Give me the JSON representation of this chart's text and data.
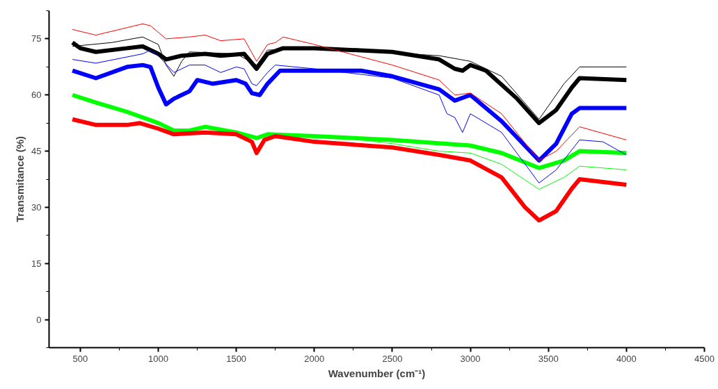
{
  "chart_data": {
    "type": "line",
    "xlabel": "Wavenumber (cm⁻¹)",
    "ylabel": "Transmitance (%)",
    "xlim": [
      300,
      4500
    ],
    "ylim": [
      -7.5,
      82.5
    ],
    "xticks": [
      500,
      {
        "value": 750,
        "label": null
      },
      1000,
      {
        "value": 1250,
        "label": null
      },
      1500,
      {
        "value": 1750,
        "label": null
      },
      2000,
      {
        "value": 2250,
        "label": null
      },
      2500,
      {
        "value": 2750,
        "label": null
      },
      3000,
      {
        "value": 3250,
        "label": null
      },
      3500,
      {
        "value": 3750,
        "label": null
      },
      4000,
      {
        "value": 4250,
        "label": null
      },
      4500
    ],
    "yticks": [
      {
        "value": -7.5,
        "label": null
      },
      0,
      {
        "value": 7.5,
        "label": null
      },
      15,
      {
        "value": 22.5,
        "label": null
      },
      30,
      {
        "value": 37.5,
        "label": null
      },
      45,
      {
        "value": 52.5,
        "label": null
      },
      60,
      {
        "value": 67.5,
        "label": null
      },
      75,
      {
        "value": 82.5,
        "label": null
      }
    ],
    "grid": false,
    "marker": "none",
    "line_style": "solid",
    "series": [
      {
        "color": "#000000",
        "x": [
          450,
          500,
          600,
          800,
          900,
          1000,
          1050,
          1150,
          1300,
          1400,
          1550,
          1630,
          1700,
          1800,
          2000,
          2500,
          2800,
          2900,
          2950,
          3000,
          3100,
          3300,
          3440,
          3550,
          3650,
          3700,
          4000
        ],
        "values": [
          74,
          72.5,
          71.5,
          72.5,
          73,
          71,
          69.5,
          70.5,
          71,
          70.5,
          71,
          67,
          71,
          72.5,
          72.5,
          71.5,
          69.5,
          67,
          66.5,
          68,
          66.5,
          59,
          52.5,
          56,
          62,
          64.5,
          64
        ]
      },
      {
        "color": "#0000ff",
        "x": [
          450,
          600,
          800,
          900,
          950,
          1000,
          1050,
          1100,
          1200,
          1250,
          1350,
          1500,
          1560,
          1600,
          1650,
          1700,
          1780,
          2000,
          2300,
          2500,
          2800,
          2900,
          3000,
          3200,
          3440,
          3550,
          3650,
          3700,
          4000
        ],
        "values": [
          66.5,
          64.5,
          67.5,
          68,
          67.5,
          62,
          57.5,
          59,
          61,
          64,
          63,
          64,
          63,
          60.5,
          60,
          63,
          66.5,
          66.5,
          66.5,
          65,
          61.5,
          58.5,
          60,
          53,
          42.5,
          47,
          55,
          56.5,
          56.5
        ]
      },
      {
        "color": "#00ff00",
        "x": [
          450,
          600,
          800,
          1000,
          1100,
          1200,
          1300,
          1500,
          1630,
          1700,
          2000,
          2500,
          3000,
          3200,
          3440,
          3600,
          3700,
          4000
        ],
        "values": [
          60,
          58,
          55.5,
          52.5,
          50.5,
          50.5,
          51.5,
          50,
          48.5,
          49.5,
          49,
          48,
          46.5,
          44.5,
          40.5,
          42.5,
          45,
          44.5
        ]
      },
      {
        "color": "#ff0000",
        "x": [
          450,
          600,
          800,
          880,
          1000,
          1100,
          1300,
          1500,
          1600,
          1630,
          1680,
          1750,
          2000,
          2500,
          2800,
          3000,
          3200,
          3350,
          3440,
          3550,
          3650,
          3700,
          4000
        ],
        "values": [
          53.5,
          52,
          52,
          52.5,
          51,
          49.5,
          50,
          49.5,
          47.5,
          44.5,
          48,
          49,
          47.5,
          46,
          44,
          42.5,
          38,
          30,
          26.5,
          29,
          35,
          37.5,
          36
        ]
      },
      {
        "color": "#000000",
        "x": [
          450,
          700,
          900,
          1000,
          1050,
          1100,
          1150,
          1200,
          1500,
          1630,
          1700,
          2000,
          2800,
          3000,
          3200,
          3440,
          3600,
          3700,
          4000
        ],
        "values": [
          73,
          74,
          75.5,
          73.5,
          68,
          65,
          69,
          71.5,
          71,
          68,
          72,
          72.5,
          70.5,
          69,
          65,
          53.5,
          63,
          67.5,
          67.5
        ]
      },
      {
        "color": "#ff0000",
        "x": [
          450,
          600,
          800,
          900,
          950,
          1050,
          1200,
          1300,
          1400,
          1550,
          1630,
          1700,
          1750,
          1800,
          2000,
          2500,
          2800,
          2900,
          3000,
          3200,
          3440,
          3550,
          3700,
          4000
        ],
        "values": [
          77.5,
          76,
          78,
          79,
          78.5,
          75,
          75.5,
          76,
          74.5,
          75,
          69,
          73.5,
          74,
          75.5,
          73.5,
          68,
          64,
          60,
          60.5,
          55,
          42.5,
          45,
          51.5,
          48
        ]
      },
      {
        "color": "#0000ff",
        "x": [
          450,
          600,
          900,
          950,
          1000,
          1100,
          1200,
          1300,
          1400,
          1500,
          1550,
          1600,
          1630,
          1700,
          1750,
          2000,
          2500,
          2800,
          2850,
          2900,
          2950,
          3000,
          3200,
          3440,
          3550,
          3700,
          3850,
          4000
        ],
        "values": [
          69.5,
          68.5,
          71,
          72,
          70.5,
          66,
          68,
          68,
          66,
          67.5,
          67,
          63,
          62.5,
          66,
          68,
          67,
          64.5,
          60,
          55,
          54,
          50,
          55,
          50,
          36.5,
          40,
          48,
          47.5,
          44
        ]
      },
      {
        "color": "#00ff00",
        "x": [
          2300,
          2500,
          2800,
          3000,
          3200,
          3440,
          3600,
          3700,
          4000
        ],
        "values": [
          48,
          47,
          45,
          44.5,
          41.5,
          34.8,
          38,
          41,
          40
        ]
      }
    ]
  }
}
